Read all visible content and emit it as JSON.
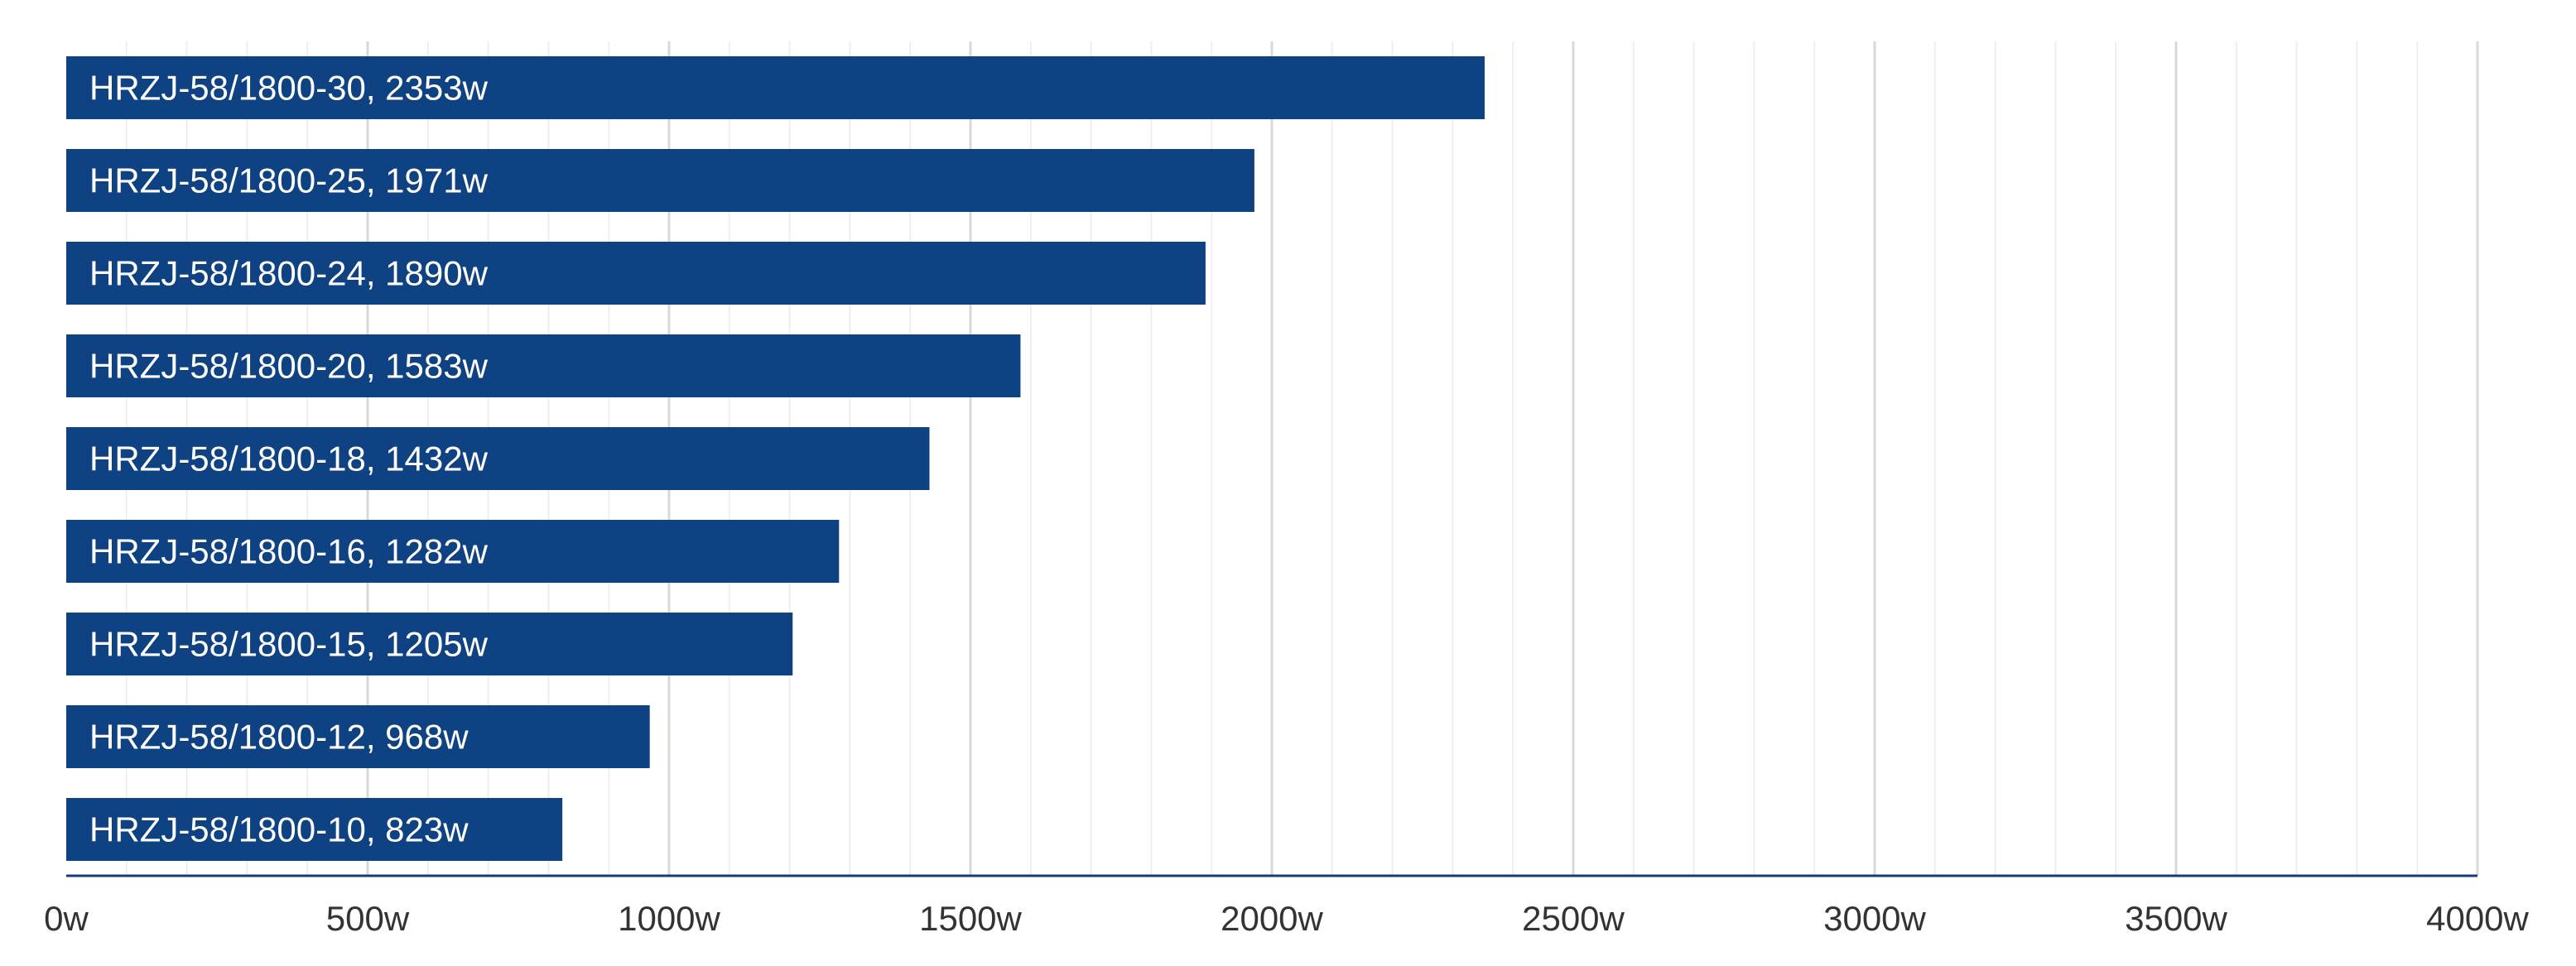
{
  "chart_data": {
    "type": "bar",
    "orientation": "horizontal",
    "title": "",
    "xlabel": "",
    "ylabel": "",
    "xlim": [
      0,
      4000
    ],
    "unit_suffix": "w",
    "grid": true,
    "legend": "none",
    "categories": [
      "HRZJ-58/1800-30",
      "HRZJ-58/1800-25",
      "HRZJ-58/1800-24",
      "HRZJ-58/1800-20",
      "HRZJ-58/1800-18",
      "HRZJ-58/1800-16",
      "HRZJ-58/1800-15",
      "HRZJ-58/1800-12",
      "HRZJ-58/1800-10"
    ],
    "values": [
      2353,
      1971,
      1890,
      1583,
      1432,
      1282,
      1205,
      968,
      823
    ],
    "bar_labels": [
      "HRZJ-58/1800-30, 2353w",
      "HRZJ-58/1800-25, 1971w",
      "HRZJ-58/1800-24, 1890w",
      "HRZJ-58/1800-20, 1583w",
      "HRZJ-58/1800-18, 1432w",
      "HRZJ-58/1800-16, 1282w",
      "HRZJ-58/1800-15, 1205w",
      "HRZJ-58/1800-12, 968w",
      "HRZJ-58/1800-10, 823w"
    ],
    "x_ticks": [
      0,
      500,
      1000,
      1500,
      2000,
      2500,
      3000,
      3500,
      4000
    ],
    "x_tick_labels": [
      "0w",
      "500w",
      "1000w",
      "1500w",
      "2000w",
      "2500w",
      "3000w",
      "3500w",
      "4000w"
    ],
    "colors": {
      "bar": "#0f4283",
      "bar_label": "#ffffff",
      "major_grid": "#d9d9d9",
      "minor_grid": "#efefef",
      "axis": "#123d7a",
      "tick_label": "#333333"
    }
  }
}
